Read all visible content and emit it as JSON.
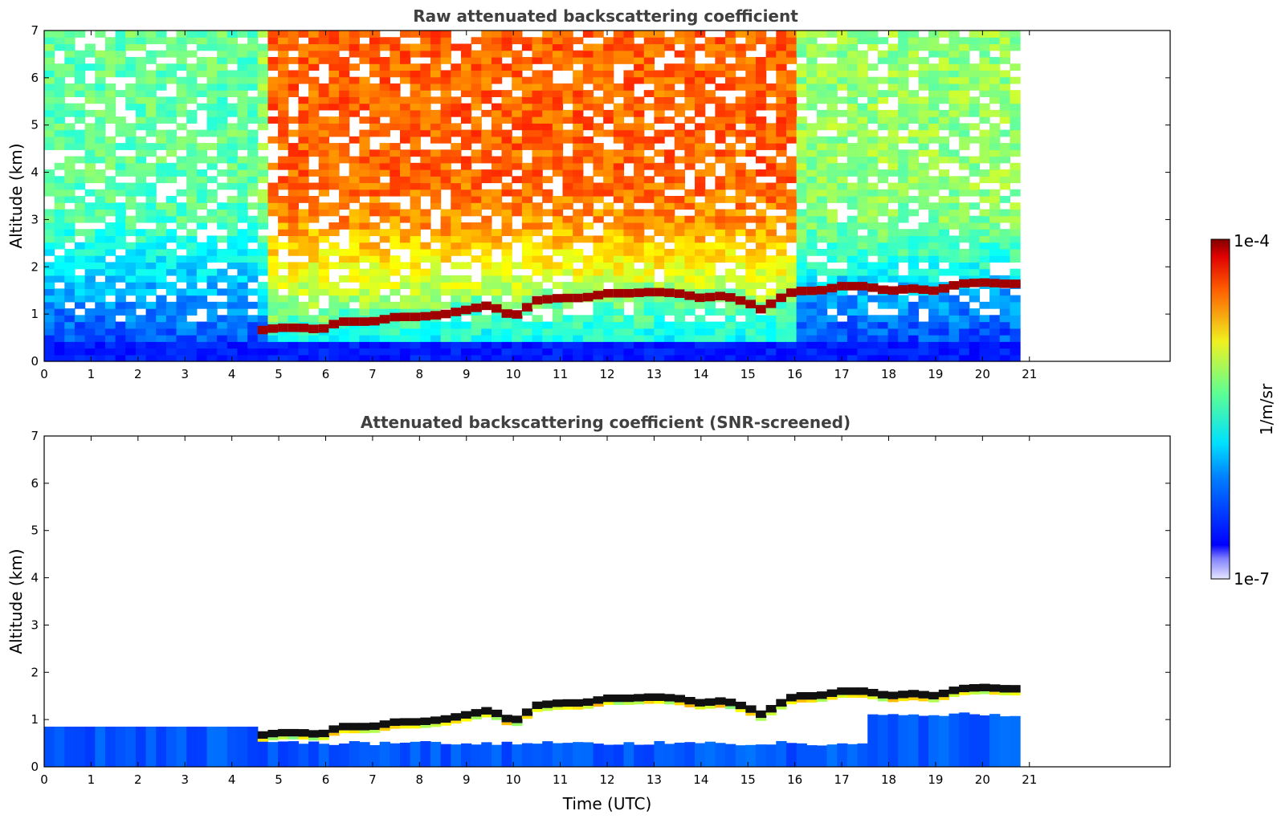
{
  "chart_data": [
    {
      "type": "heatmap",
      "title": "Raw attenuated backscattering coefficient",
      "xlabel": "",
      "ylabel": "Altitude (km)",
      "xlim": [
        0,
        24
      ],
      "ylim": [
        0,
        7
      ],
      "xticks": [
        "0",
        "1",
        "2",
        "3",
        "4",
        "5",
        "6",
        "7",
        "8",
        "9",
        "10",
        "11",
        "12",
        "13",
        "14",
        "15",
        "16",
        "17",
        "18",
        "19",
        "20",
        "21"
      ],
      "yticks": [
        "0",
        "1",
        "2",
        "3",
        "4",
        "5",
        "6",
        "7"
      ],
      "data_end_time": 20.8,
      "grid": false,
      "cloud_base_km": {
        "x": [
          4.5,
          5.0,
          5.5,
          5.9,
          6.3,
          7.0,
          7.5,
          8.0,
          8.5,
          9.0,
          9.5,
          10.0,
          10.5,
          11.0,
          11.5,
          12.0,
          12.5,
          13.0,
          13.5,
          14.0,
          14.5,
          15.0,
          15.3,
          15.6,
          16.0,
          16.5,
          17.0,
          17.5,
          18.0,
          18.5,
          19.0,
          19.5,
          20.0,
          20.5,
          20.8
        ],
        "y": [
          0.65,
          0.72,
          0.72,
          0.68,
          0.85,
          0.85,
          0.95,
          0.95,
          1.0,
          1.1,
          1.2,
          0.95,
          1.3,
          1.35,
          1.35,
          1.45,
          1.45,
          1.48,
          1.45,
          1.35,
          1.4,
          1.25,
          1.1,
          1.3,
          1.5,
          1.5,
          1.6,
          1.6,
          1.5,
          1.55,
          1.5,
          1.65,
          1.68,
          1.65,
          1.65
        ]
      }
    },
    {
      "type": "heatmap",
      "title": "Attenuated backscattering coefficient (SNR-screened)",
      "xlabel": "Time (UTC)",
      "ylabel": "Altitude (km)",
      "xlim": [
        0,
        24
      ],
      "ylim": [
        0,
        7
      ],
      "xticks": [
        "0",
        "1",
        "2",
        "3",
        "4",
        "5",
        "6",
        "7",
        "8",
        "9",
        "10",
        "11",
        "12",
        "13",
        "14",
        "15",
        "16",
        "17",
        "18",
        "19",
        "20",
        "21"
      ],
      "yticks": [
        "0",
        "1",
        "2",
        "3",
        "4",
        "5",
        "6",
        "7"
      ],
      "data_end_time": 20.8,
      "grid": false
    }
  ],
  "colorbar": {
    "max_label": "1e-4",
    "min_label": "1e-7",
    "unit_label": "1/m/sr",
    "colormap": "jet",
    "scale": "log"
  }
}
